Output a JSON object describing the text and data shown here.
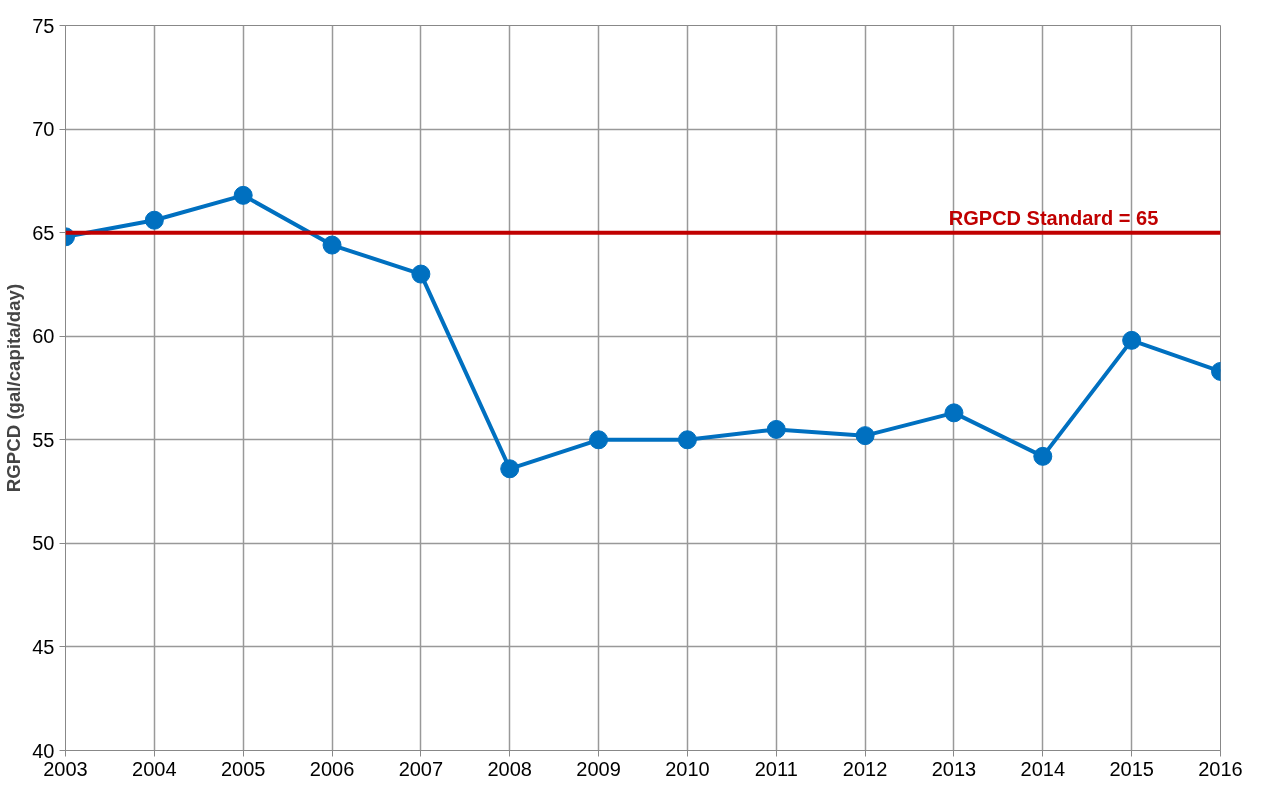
{
  "chart_data": {
    "type": "line",
    "ylabel": "RGPCD (gal/capita/day)",
    "x": [
      2003,
      2004,
      2005,
      2006,
      2007,
      2008,
      2009,
      2010,
      2011,
      2012,
      2013,
      2014,
      2015,
      2016
    ],
    "series": [
      {
        "color": "#0070c0",
        "values": [
          64.8,
          65.6,
          66.8,
          64.4,
          63.0,
          53.6,
          55.0,
          55.0,
          55.5,
          55.2,
          56.3,
          54.2,
          59.8,
          58.3
        ]
      }
    ],
    "xlim": [
      2003,
      2016
    ],
    "xticks": [
      2003,
      2004,
      2005,
      2006,
      2007,
      2008,
      2009,
      2010,
      2011,
      2012,
      2013,
      2014,
      2015,
      2016
    ],
    "ylim": [
      40,
      75
    ],
    "yticks": [
      40,
      45,
      50,
      55,
      60,
      65,
      70,
      75
    ],
    "ref_lines": [
      {
        "axis": "y",
        "value": 65,
        "label": "RGPCD Standard = 65",
        "color": "#c00000"
      }
    ],
    "grid": true,
    "marker": "circle",
    "line_style": "solid"
  }
}
